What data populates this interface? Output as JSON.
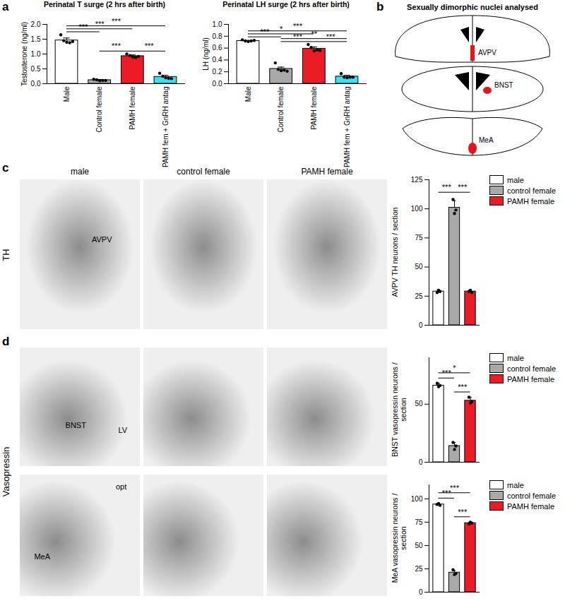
{
  "panels": {
    "letters": [
      "a",
      "b",
      "c",
      "d"
    ],
    "b": {
      "title": "Sexually dimorphic nuclei analysed",
      "nuclei": [
        "AVPV",
        "BNST",
        "MeA"
      ]
    },
    "c": {
      "row_label": "TH",
      "columns": [
        "male",
        "control female",
        "PAMH female"
      ],
      "image_labels": [
        "AVPV"
      ]
    },
    "d": {
      "row_label": "Vasopressin",
      "rows": [
        {
          "image_labels": [
            "LV",
            "BNST"
          ]
        },
        {
          "image_labels": [
            "opt",
            "MeA"
          ]
        }
      ]
    }
  },
  "chart_data": [
    {
      "type": "bar",
      "title": "Perinatal T surge (2 hrs after birth)",
      "y_label": "Testosterone (ng/ml)",
      "categories": [
        "Male",
        "Control female",
        "PAMH female",
        "PAMH fem + GnRH antag"
      ],
      "values": [
        1.46,
        0.12,
        0.93,
        0.23
      ],
      "errors": [
        0.08,
        0.02,
        0.04,
        0.05
      ],
      "points": [
        [
          1.65,
          1.45,
          1.4,
          1.38,
          1.42
        ],
        [
          0.15,
          0.13,
          0.1,
          0.11,
          0.11
        ],
        [
          1.0,
          0.95,
          0.9,
          0.88,
          0.92
        ],
        [
          0.35,
          0.25,
          0.2,
          0.18,
          0.17
        ]
      ],
      "colors": [
        "#ffffff",
        "#a9a9a9",
        "#ec1c24",
        "#3ae2ee"
      ],
      "ylim": [
        0,
        2.0
      ],
      "yticks": [
        {
          "value": 0,
          "label": "0.0"
        },
        {
          "value": 0.5,
          "label": "0.5"
        },
        {
          "value": 1,
          "label": "1.0"
        },
        {
          "value": 1.5,
          "label": "1.5"
        },
        {
          "value": 2,
          "label": "2.0"
        }
      ],
      "comparisons": [
        {
          "groups": [
            1,
            2
          ],
          "label": "***"
        },
        {
          "groups": [
            2,
            3
          ],
          "label": "***"
        },
        {
          "groups": [
            0,
            1
          ],
          "label": "***"
        },
        {
          "groups": [
            0,
            2
          ],
          "label": "***"
        },
        {
          "groups": [
            0,
            3
          ],
          "label": "***"
        }
      ]
    },
    {
      "type": "bar",
      "title": "Perinatal LH surge (2 hrs after birth)",
      "y_label": "LH (ng/ml)",
      "categories": [
        "Male",
        "Control female",
        "PAMH female",
        "PAMH fem + GnRH antag"
      ],
      "values": [
        0.72,
        0.25,
        0.59,
        0.12
      ],
      "errors": [
        0.01,
        0.03,
        0.03,
        0.02
      ],
      "points": [
        [
          0.74,
          0.72,
          0.71,
          0.72,
          0.73
        ],
        [
          0.35,
          0.24,
          0.22,
          0.23,
          0.21
        ],
        [
          0.66,
          0.61,
          0.55,
          0.57,
          0.56
        ],
        [
          0.17,
          0.11,
          0.1,
          0.11,
          0.11
        ]
      ],
      "colors": [
        "#ffffff",
        "#a9a9a9",
        "#ec1c24",
        "#3ae2ee"
      ],
      "ylim": [
        0,
        1.0
      ],
      "yticks": [
        {
          "value": 0,
          "label": "0.0"
        },
        {
          "value": 0.2,
          "label": "0.2"
        },
        {
          "value": 0.4,
          "label": "0.4"
        },
        {
          "value": 0.6,
          "label": "0.6"
        },
        {
          "value": 0.8,
          "label": "0.8"
        },
        {
          "value": 1,
          "label": "1.0"
        }
      ],
      "comparisons": [
        {
          "groups": [
            1,
            2
          ],
          "label": "***"
        },
        {
          "groups": [
            2,
            3
          ],
          "label": "***"
        },
        {
          "groups": [
            0,
            1
          ],
          "label": "***"
        },
        {
          "groups": [
            1,
            3
          ],
          "label": "**"
        },
        {
          "groups": [
            0,
            2
          ],
          "label": "*"
        },
        {
          "groups": [
            0,
            3
          ],
          "label": "***"
        }
      ]
    },
    {
      "type": "bar",
      "y_label": "AVPV TH neurons / section",
      "categories": [
        "male",
        "control female",
        "PAMH female"
      ],
      "values": [
        29,
        101,
        29
      ],
      "errors": [
        1,
        6,
        1
      ],
      "points": [
        [
          28,
          30,
          29
        ],
        [
          108,
          96,
          99
        ],
        [
          29,
          30,
          28
        ]
      ],
      "colors": [
        "#ffffff",
        "#a9a9a9",
        "#ec1c24"
      ],
      "ylim": [
        0,
        125
      ],
      "yticks": [
        0,
        25,
        50,
        75,
        100,
        125
      ],
      "tick_labels": "y",
      "legend": "right",
      "comparisons": [
        {
          "groups": [
            0,
            1
          ],
          "label": "***"
        },
        {
          "groups": [
            1,
            2
          ],
          "label": "***"
        }
      ]
    },
    {
      "type": "bar",
      "y_label": "BNST vasopressin neurons / section",
      "categories": [
        "male",
        "control female",
        "PAMH female"
      ],
      "values": [
        66,
        14,
        53
      ],
      "errors": [
        2,
        3,
        3
      ],
      "points": [
        [
          68,
          65,
          66
        ],
        [
          17,
          11,
          14
        ],
        [
          56,
          51,
          52
        ]
      ],
      "colors": [
        "#ffffff",
        "#a9a9a9",
        "#ec1c24"
      ],
      "ylim": [
        0,
        90
      ],
      "yticks": [
        0,
        50
      ],
      "tick_labels": "y",
      "legend": "right",
      "comparisons": [
        {
          "groups": [
            0,
            1
          ],
          "label": "***"
        },
        {
          "groups": [
            1,
            2
          ],
          "label": "***"
        },
        {
          "groups": [
            0,
            2
          ],
          "label": "*"
        }
      ]
    },
    {
      "type": "bar",
      "y_label": "MeA vasopressin neurons / section",
      "categories": [
        "male",
        "control female",
        "PAMH female"
      ],
      "values": [
        94,
        21,
        74
      ],
      "errors": [
        1,
        2,
        1
      ],
      "points": [
        [
          94,
          95,
          93
        ],
        [
          24,
          19,
          20
        ],
        [
          73,
          75,
          74
        ]
      ],
      "colors": [
        "#ffffff",
        "#a9a9a9",
        "#ec1c24"
      ],
      "ylim": [
        0,
        115
      ],
      "yticks": [
        0,
        25,
        50,
        75,
        100
      ],
      "tick_labels": "y",
      "legend": "right",
      "comparisons": [
        {
          "groups": [
            0,
            1
          ],
          "label": "***"
        },
        {
          "groups": [
            1,
            2
          ],
          "label": "***"
        },
        {
          "groups": [
            0,
            2
          ],
          "label": "***"
        }
      ]
    }
  ]
}
